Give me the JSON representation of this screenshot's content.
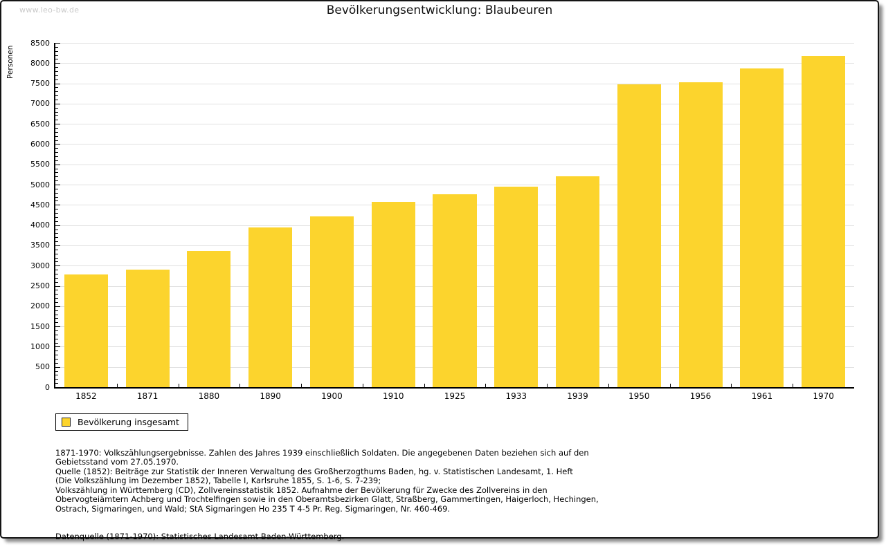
{
  "watermark": "www.leo-bw.de",
  "header": {
    "title": "Bevölkerungsentwicklung: Blaubeuren"
  },
  "colors": {
    "bar": "#fcd42d",
    "grid": "#e0e0e0",
    "axis": "#000000",
    "watermark": "#c9c9c9"
  },
  "chart_data": {
    "type": "bar",
    "title": "Bevölkerungsentwicklung: Blaubeuren",
    "xlabel": "",
    "ylabel": "Personen",
    "categories": [
      "1852",
      "1871",
      "1880",
      "1890",
      "1900",
      "1910",
      "1925",
      "1933",
      "1939",
      "1950",
      "1956",
      "1961",
      "1970"
    ],
    "values": [
      2780,
      2900,
      3370,
      3940,
      4220,
      4570,
      4760,
      4950,
      5200,
      7470,
      7530,
      7870,
      8180
    ],
    "series_name": "Bevölkerung insgesamt",
    "ylim": [
      0,
      8500
    ],
    "ytick_step": 500,
    "minor_tick_step": 100,
    "grid": true,
    "legend_position": "bottom-left",
    "bar_color": "#fcd42d"
  },
  "legend": {
    "label": "Bevölkerung insgesamt"
  },
  "footnotes": {
    "sources": "1871-1970: Volkszählungsergebnisse. Zahlen des Jahres 1939 einschließlich Soldaten. Die angegebenen Daten beziehen sich auf den\nGebietsstand vom 27.05.1970.\nQuelle (1852): Beiträge zur Statistik der Inneren Verwaltung des Großherzogthums Baden, hg. v. Statistischen Landesamt, 1. Heft\n(Die Volkszählung im Dezember 1852), Tabelle I, Karlsruhe 1855, S. 1-6, S. 7-239;\nVolkszählung in Württemberg (CD), Zollvereinsstatistik 1852. Aufnahme der Bevölkerung für Zwecke des Zollvereins in den\nObervogteiämtern Achberg und Trochtelfingen sowie in den Oberamtsbezirken Glatt, Straßberg, Gammertingen, Haigerloch, Hechingen,\nOstrach, Sigmaringen, und Wald; StA Sigmaringen Ho 235 T 4-5 Pr. Reg. Sigmaringen, Nr. 460-469.",
    "data_source": "Datenquelle (1871-1970): Statistisches Landesamt Baden-Württemberg."
  }
}
